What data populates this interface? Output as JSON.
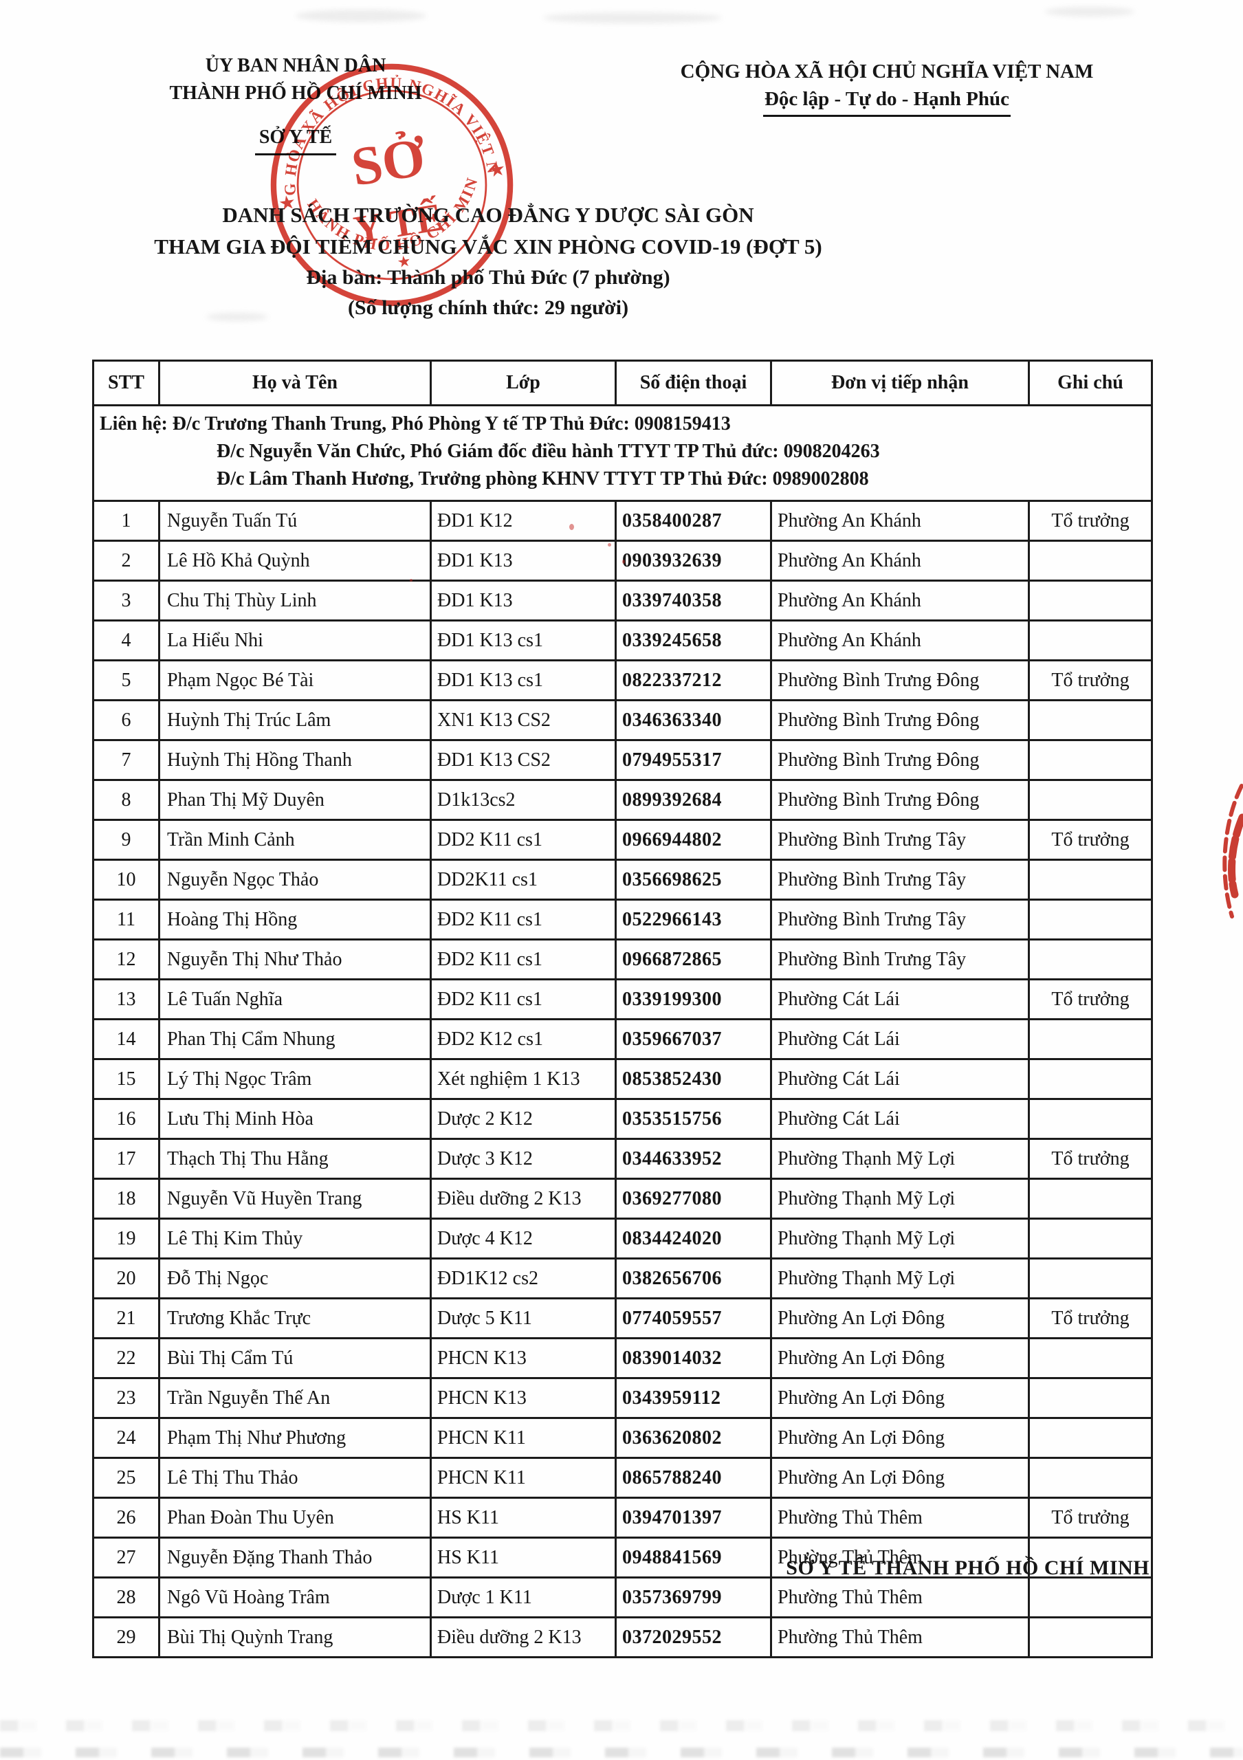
{
  "header": {
    "left_line1": "ỦY BAN NHÂN DÂN",
    "left_line2": "THÀNH PHỐ HỒ CHÍ MINH",
    "left_dept": "SỞ Y TẾ",
    "right_line1": "CỘNG HÒA XÃ HỘI CHỦ NGHĨA VIỆT NAM",
    "right_line2": "Độc lập - Tự do - Hạnh Phúc"
  },
  "stamp": {
    "ring_top": "CỘNG HÒA XÃ HỘI CHỦ NGHĨA VIỆT NAM",
    "ring_bottom": "THÀNH PHỐ HỒ CHÍ MINH",
    "center_line1": "SỞ",
    "center_line2": "Y TẾ",
    "star": "★",
    "color": "#cf2a1e"
  },
  "title": {
    "line1": "DANH SÁCH TRƯỜNG CAO ĐẲNG Y DƯỢC SÀI GÒN",
    "line2": "THAM GIA ĐỘI TIÊM CHỦNG VẮC XIN PHÒNG COVID-19 (ĐỢT 5)",
    "line3": "Địa bàn: Thành phố Thủ Đức (7 phường)",
    "line4": "(Số lượng chính thức: 29 người)"
  },
  "table": {
    "columns": [
      "STT",
      "Họ và Tên",
      "Lớp",
      "Số điện thoại",
      "Đơn vị tiếp nhận",
      "Ghi chú"
    ],
    "contact_lines": [
      "Liên hệ: Đ/c Trương Thanh Trung, Phó Phòng Y tế TP Thủ Đức: 0908159413",
      "Đ/c Nguyễn Văn Chức, Phó Giám đốc điều hành TTYT TP Thủ đức: 0908204263",
      "Đ/c Lâm Thanh Hương, Trưởng phòng KHNV TTYT TP Thủ Đức: 0989002808"
    ],
    "rows": [
      {
        "stt": "1",
        "name": "Nguyễn Tuấn Tú",
        "class": "ĐD1 K12",
        "phone": "0358400287",
        "unit": "Phường An Khánh",
        "note": "Tổ trưởng"
      },
      {
        "stt": "2",
        "name": "Lê Hồ Khả Quỳnh",
        "class": "ĐD1 K13",
        "phone": "0903932639",
        "unit": "Phường An Khánh",
        "note": ""
      },
      {
        "stt": "3",
        "name": "Chu Thị Thùy Linh",
        "class": "ĐD1 K13",
        "phone": "0339740358",
        "unit": "Phường An Khánh",
        "note": ""
      },
      {
        "stt": "4",
        "name": "La Hiểu Nhi",
        "class": "ĐD1 K13 cs1",
        "phone": "0339245658",
        "unit": "Phường An Khánh",
        "note": ""
      },
      {
        "stt": "5",
        "name": "Phạm Ngọc Bé Tài",
        "class": "ĐD1 K13 cs1",
        "phone": "0822337212",
        "unit": "Phường Bình Trưng Đông",
        "note": "Tổ trưởng"
      },
      {
        "stt": "6",
        "name": "Huỳnh Thị Trúc Lâm",
        "class": "XN1 K13 CS2",
        "phone": "0346363340",
        "unit": "Phường Bình Trưng Đông",
        "note": ""
      },
      {
        "stt": "7",
        "name": "Huỳnh Thị Hồng Thanh",
        "class": "ĐD1 K13 CS2",
        "phone": "0794955317",
        "unit": "Phường Bình Trưng Đông",
        "note": ""
      },
      {
        "stt": "8",
        "name": "Phan Thị Mỹ Duyên",
        "class": "D1k13cs2",
        "phone": "0899392684",
        "unit": "Phường Bình Trưng Đông",
        "note": ""
      },
      {
        "stt": "9",
        "name": "Trần Minh Cảnh",
        "class": "DD2 K11 cs1",
        "phone": "0966944802",
        "unit": "Phường Bình Trưng Tây",
        "note": "Tổ trưởng"
      },
      {
        "stt": "10",
        "name": "Nguyễn Ngọc Thảo",
        "class": "DD2K11 cs1",
        "phone": "0356698625",
        "unit": "Phường Bình Trưng Tây",
        "note": ""
      },
      {
        "stt": "11",
        "name": "Hoàng Thị Hồng",
        "class": "ĐD2 K11 cs1",
        "phone": "0522966143",
        "unit": "Phường Bình Trưng Tây",
        "note": ""
      },
      {
        "stt": "12",
        "name": "Nguyễn Thị Như Thảo",
        "class": "ĐD2 K11 cs1",
        "phone": "0966872865",
        "unit": "Phường Bình Trưng Tây",
        "note": ""
      },
      {
        "stt": "13",
        "name": "Lê Tuấn Nghĩa",
        "class": "ĐD2 K11 cs1",
        "phone": "0339199300",
        "unit": "Phường Cát Lái",
        "note": "Tổ trưởng"
      },
      {
        "stt": "14",
        "name": "Phan Thị Cẩm Nhung",
        "class": "ĐD2 K12 cs1",
        "phone": "0359667037",
        "unit": "Phường Cát Lái",
        "note": ""
      },
      {
        "stt": "15",
        "name": "Lý Thị Ngọc Trâm",
        "class": "Xét nghiệm 1 K13",
        "phone": "0853852430",
        "unit": "Phường Cát Lái",
        "note": ""
      },
      {
        "stt": "16",
        "name": "Lưu Thị Minh Hòa",
        "class": "Dược 2 K12",
        "phone": "0353515756",
        "unit": "Phường Cát Lái",
        "note": ""
      },
      {
        "stt": "17",
        "name": "Thạch Thị Thu Hằng",
        "class": "Dược 3 K12",
        "phone": "0344633952",
        "unit": "Phường Thạnh Mỹ Lợi",
        "note": "Tổ trưởng"
      },
      {
        "stt": "18",
        "name": "Nguyễn Vũ Huyền Trang",
        "class": "Điều dưỡng 2 K13",
        "phone": "0369277080",
        "unit": "Phường Thạnh Mỹ Lợi",
        "note": ""
      },
      {
        "stt": "19",
        "name": "Lê Thị Kim Thủy",
        "class": "Dược 4 K12",
        "phone": "0834424020",
        "unit": "Phường Thạnh Mỹ Lợi",
        "note": ""
      },
      {
        "stt": "20",
        "name": "Đỗ Thị Ngọc",
        "class": "ĐD1K12 cs2",
        "phone": "0382656706",
        "unit": "Phường Thạnh Mỹ Lợi",
        "note": ""
      },
      {
        "stt": "21",
        "name": "Trương Khắc Trực",
        "class": "Dược 5 K11",
        "phone": "0774059557",
        "unit": "Phường An Lợi Đông",
        "note": "Tổ trưởng"
      },
      {
        "stt": "22",
        "name": "Bùi Thị Cẩm Tú",
        "class": "PHCN K13",
        "phone": "0839014032",
        "unit": "Phường An Lợi Đông",
        "note": ""
      },
      {
        "stt": "23",
        "name": "Trần Nguyễn Thế An",
        "class": "PHCN K13",
        "phone": "0343959112",
        "unit": "Phường An Lợi Đông",
        "note": ""
      },
      {
        "stt": "24",
        "name": "Phạm Thị Như Phương",
        "class": "PHCN K11",
        "phone": "0363620802",
        "unit": "Phường An Lợi Đông",
        "note": ""
      },
      {
        "stt": "25",
        "name": "Lê Thị Thu Thảo",
        "class": "PHCN K11",
        "phone": "0865788240",
        "unit": "Phường An Lợi Đông",
        "note": ""
      },
      {
        "stt": "26",
        "name": "Phan Đoàn Thu Uyên",
        "class": "HS K11",
        "phone": "0394701397",
        "unit": "Phường Thủ Thêm",
        "note": "Tổ trưởng"
      },
      {
        "stt": "27",
        "name": "Nguyễn Đặng Thanh Thảo",
        "class": "HS K11",
        "phone": "0948841569",
        "unit": "Phường Thủ Thêm",
        "note": ""
      },
      {
        "stt": "28",
        "name": "Ngô Vũ Hoàng Trâm",
        "class": "Dược 1 K11",
        "phone": "0357369799",
        "unit": "Phường Thủ Thêm",
        "note": ""
      },
      {
        "stt": "29",
        "name": "Bùi Thị Quỳnh Trang",
        "class": "Điều dưỡng 2 K13",
        "phone": "0372029552",
        "unit": "Phường Thủ Thêm",
        "note": ""
      }
    ]
  },
  "footer": {
    "signature": "SỞ Y TẾ THÀNH PHỐ HỒ CHÍ MINH"
  }
}
